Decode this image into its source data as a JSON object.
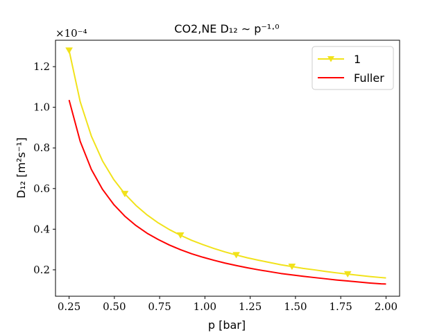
{
  "chart_data": {
    "type": "line",
    "title": "CO2,NE D₁₂ ∼ p⁻¹·⁰",
    "xlabel": "p [bar]",
    "ylabel": "D₁₂ [m²s⁻¹]",
    "y_multiplier": "×10⁻⁴",
    "xlim": [
      0.175,
      2.075
    ],
    "ylim": [
      0.07,
      1.33
    ],
    "x_ticks": [
      0.25,
      0.5,
      0.75,
      1.0,
      1.25,
      1.5,
      1.75,
      2.0
    ],
    "x_tick_labels": [
      "0.25",
      "0.50",
      "0.75",
      "1.00",
      "1.25",
      "1.50",
      "1.75",
      "2.00"
    ],
    "y_ticks": [
      0.2,
      0.4,
      0.6,
      0.8,
      1.0,
      1.2
    ],
    "y_tick_labels": [
      "0.2",
      "0.4",
      "0.6",
      "0.8",
      "1.0",
      "1.2"
    ],
    "legend_position": "top-right",
    "x": [
      0.25,
      0.3115,
      0.3731,
      0.4346,
      0.4962,
      0.5577,
      0.6192,
      0.6808,
      0.7423,
      0.8038,
      0.8654,
      0.9269,
      0.9885,
      1.05,
      1.1115,
      1.1731,
      1.2346,
      1.2962,
      1.3577,
      1.4192,
      1.4808,
      1.5423,
      1.6038,
      1.6654,
      1.7269,
      1.7885,
      1.85,
      1.9115,
      1.9731,
      2.0
    ],
    "series": [
      {
        "name": "1",
        "color": "#f1e21a",
        "marker": "triangle-down",
        "marker_x": [
          0.25,
          0.5577,
          0.8654,
          1.1731,
          1.4808,
          1.7885
        ],
        "values": [
          1.28,
          1.027,
          0.858,
          0.736,
          0.645,
          0.574,
          0.517,
          0.47,
          0.431,
          0.398,
          0.37,
          0.345,
          0.324,
          0.305,
          0.288,
          0.273,
          0.259,
          0.247,
          0.236,
          0.225,
          0.216,
          0.207,
          0.2,
          0.192,
          0.185,
          0.179,
          0.173,
          0.167,
          0.162,
          0.16
        ]
      },
      {
        "name": "Fuller",
        "color": "#ff0000",
        "marker": "none",
        "values": [
          1.036,
          0.832,
          0.694,
          0.596,
          0.522,
          0.464,
          0.418,
          0.38,
          0.349,
          0.322,
          0.299,
          0.279,
          0.262,
          0.247,
          0.233,
          0.221,
          0.21,
          0.2,
          0.191,
          0.182,
          0.175,
          0.168,
          0.162,
          0.156,
          0.15,
          0.145,
          0.14,
          0.135,
          0.131,
          0.13
        ]
      }
    ]
  }
}
